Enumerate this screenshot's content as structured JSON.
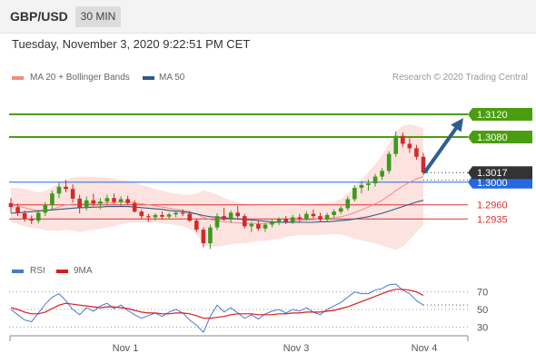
{
  "header": {
    "symbol": "GBP/USD",
    "timeframe": "30 MIN"
  },
  "date_line": "Tuesday, November 3, 2020 9:22:51 PM CET",
  "copyright": "Research © 2020 Trading Central",
  "legend": {
    "ma20_label": "MA 20 + Bollinger Bands",
    "ma20_color": "#f28b82",
    "ma50_label": "MA 50",
    "ma50_color": "#2d5a85",
    "rsi_label": "RSI",
    "rsi_color": "#4a78d0",
    "rsi_ma_label": "9MA",
    "rsi_ma_color": "#d81b1b"
  },
  "chart_data": [
    {
      "type": "candlestick",
      "ylim": [
        1.286,
        1.3165
      ],
      "x_labels": [
        "Nov 1",
        "Nov 3",
        "Nov 4"
      ],
      "candles": [
        [
          1.2963,
          1.2972,
          1.2946,
          1.2956
        ],
        [
          1.2956,
          1.2962,
          1.294,
          1.2945
        ],
        [
          1.2945,
          1.295,
          1.293,
          1.2935
        ],
        [
          1.2935,
          1.2941,
          1.2926,
          1.2932
        ],
        [
          1.2932,
          1.2949,
          1.2927,
          1.2946
        ],
        [
          1.2946,
          1.2965,
          1.294,
          1.296
        ],
        [
          1.296,
          1.2985,
          1.2952,
          1.298
        ],
        [
          1.298,
          1.3,
          1.2972,
          1.2992
        ],
        [
          1.2992,
          1.3004,
          1.2982,
          1.2988
        ],
        [
          1.2988,
          1.2996,
          1.2964,
          1.2971
        ],
        [
          1.2971,
          1.2978,
          1.2945,
          1.2955
        ],
        [
          1.2955,
          1.2975,
          1.295,
          1.2968
        ],
        [
          1.2968,
          1.298,
          1.2958,
          1.2962
        ],
        [
          1.2962,
          1.2972,
          1.2952,
          1.2966
        ],
        [
          1.2966,
          1.2978,
          1.296,
          1.2972
        ],
        [
          1.2972,
          1.298,
          1.2962,
          1.2965
        ],
        [
          1.2965,
          1.2975,
          1.2958,
          1.297
        ],
        [
          1.297,
          1.2976,
          1.296,
          1.2963
        ],
        [
          1.2963,
          1.2968,
          1.2946,
          1.2948
        ],
        [
          1.2948,
          1.2952,
          1.2935,
          1.294
        ],
        [
          1.294,
          1.2944,
          1.293,
          1.2938
        ],
        [
          1.2938,
          1.2945,
          1.2932,
          1.2942
        ],
        [
          1.2942,
          1.2948,
          1.2934,
          1.2939
        ],
        [
          1.2939,
          1.2946,
          1.2935,
          1.2943
        ],
        [
          1.2943,
          1.295,
          1.2938,
          1.2946
        ],
        [
          1.2946,
          1.2952,
          1.294,
          1.2944
        ],
        [
          1.2944,
          1.2949,
          1.293,
          1.2932
        ],
        [
          1.2932,
          1.2936,
          1.2912,
          1.2916
        ],
        [
          1.2916,
          1.292,
          1.2885,
          1.2892
        ],
        [
          1.2892,
          1.2925,
          1.2882,
          1.292
        ],
        [
          1.292,
          1.2945,
          1.2915,
          1.294
        ],
        [
          1.294,
          1.2955,
          1.2932,
          1.2934
        ],
        [
          1.2934,
          1.295,
          1.2928,
          1.2946
        ],
        [
          1.2946,
          1.2958,
          1.2936,
          1.294
        ],
        [
          1.294,
          1.2944,
          1.2918,
          1.2922
        ],
        [
          1.2922,
          1.293,
          1.2912,
          1.2926
        ],
        [
          1.2926,
          1.2932,
          1.2914,
          1.2918
        ],
        [
          1.2918,
          1.2928,
          1.2912,
          1.2925
        ],
        [
          1.2925,
          1.2934,
          1.292,
          1.293
        ],
        [
          1.293,
          1.2938,
          1.2924,
          1.2935
        ],
        [
          1.2935,
          1.294,
          1.2926,
          1.293
        ],
        [
          1.293,
          1.2942,
          1.2926,
          1.2938
        ],
        [
          1.2938,
          1.2944,
          1.293,
          1.2935
        ],
        [
          1.2935,
          1.2948,
          1.2932,
          1.2944
        ],
        [
          1.2944,
          1.2952,
          1.2936,
          1.294
        ],
        [
          1.294,
          1.2946,
          1.293,
          1.2934
        ],
        [
          1.2934,
          1.2946,
          1.293,
          1.2942
        ],
        [
          1.2942,
          1.2952,
          1.2938,
          1.2948
        ],
        [
          1.2948,
          1.2958,
          1.2944,
          1.2954
        ],
        [
          1.2954,
          1.2975,
          1.295,
          1.297
        ],
        [
          1.297,
          1.2995,
          1.2966,
          1.299
        ],
        [
          1.299,
          1.3002,
          1.298,
          1.2995
        ],
        [
          1.2995,
          1.3005,
          1.2985,
          1.2998
        ],
        [
          1.2998,
          1.3015,
          1.2992,
          1.301
        ],
        [
          1.301,
          1.3025,
          1.3004,
          1.302
        ],
        [
          1.302,
          1.3055,
          1.3015,
          1.305
        ],
        [
          1.305,
          1.309,
          1.3045,
          1.3082
        ],
        [
          1.3082,
          1.3088,
          1.3062,
          1.3068
        ],
        [
          1.3068,
          1.3078,
          1.3052,
          1.306
        ],
        [
          1.306,
          1.3066,
          1.304,
          1.3045
        ],
        [
          1.3045,
          1.3052,
          1.3012,
          1.3017
        ]
      ],
      "ma20": [
        1.296,
        1.2958,
        1.2955,
        1.2952,
        1.295,
        1.295,
        1.2952,
        1.2956,
        1.296,
        1.2961,
        1.2961,
        1.2962,
        1.2963,
        1.2963,
        1.2964,
        1.2964,
        1.2965,
        1.2965,
        1.2964,
        1.2962,
        1.296,
        1.2958,
        1.2956,
        1.2954,
        1.2952,
        1.295,
        1.2948,
        1.2944,
        1.2938,
        1.2934,
        1.2932,
        1.293,
        1.2929,
        1.2928,
        1.2927,
        1.2927,
        1.2927,
        1.2927,
        1.2928,
        1.2929,
        1.293,
        1.2931,
        1.2932,
        1.2933,
        1.2934,
        1.2935,
        1.2936,
        1.2937,
        1.2939,
        1.2942,
        1.2946,
        1.2951,
        1.2956,
        1.2962,
        1.2968,
        1.2976,
        1.2985,
        1.2993,
        1.3,
        1.3006,
        1.301
      ],
      "bb_upper": [
        1.299,
        1.299,
        1.2988,
        1.2985,
        1.2982,
        1.2985,
        1.299,
        1.2998,
        1.3004,
        1.3008,
        1.301,
        1.301,
        1.301,
        1.3009,
        1.3008,
        1.3006,
        1.3004,
        1.3002,
        1.3,
        1.2995,
        1.2992,
        1.2988,
        1.2985,
        1.2982,
        1.298,
        1.2978,
        1.2978,
        1.298,
        1.2985,
        1.2983,
        1.2978,
        1.2972,
        1.2968,
        1.2964,
        1.2962,
        1.296,
        1.2958,
        1.2958,
        1.2958,
        1.2958,
        1.2957,
        1.2957,
        1.2958,
        1.296,
        1.2962,
        1.2963,
        1.2964,
        1.2966,
        1.297,
        1.298,
        1.2992,
        1.3005,
        1.3018,
        1.3032,
        1.3048,
        1.3068,
        1.309,
        1.31,
        1.3102,
        1.31,
        1.3096
      ],
      "bb_lower": [
        1.293,
        1.2926,
        1.2922,
        1.2919,
        1.2918,
        1.2915,
        1.2914,
        1.2914,
        1.2916,
        1.2914,
        1.2912,
        1.2914,
        1.2916,
        1.2917,
        1.292,
        1.2922,
        1.2926,
        1.2928,
        1.2928,
        1.2929,
        1.2928,
        1.2928,
        1.2927,
        1.2926,
        1.2924,
        1.2922,
        1.2918,
        1.2908,
        1.2891,
        1.2885,
        1.2886,
        1.2888,
        1.289,
        1.2892,
        1.2892,
        1.2894,
        1.2896,
        1.2896,
        1.2898,
        1.29,
        1.2903,
        1.2905,
        1.2906,
        1.2906,
        1.2906,
        1.2907,
        1.2908,
        1.2908,
        1.2908,
        1.2904,
        1.29,
        1.2897,
        1.2894,
        1.2892,
        1.2888,
        1.2884,
        1.288,
        1.2886,
        1.2898,
        1.2912,
        1.2924
      ],
      "ma50": [
        1.2945,
        1.2946,
        1.2947,
        1.2948,
        1.2949,
        1.295,
        1.2951,
        1.2952,
        1.2953,
        1.2954,
        1.2955,
        1.2955,
        1.2956,
        1.2956,
        1.2957,
        1.2957,
        1.2957,
        1.2957,
        1.2956,
        1.2955,
        1.2954,
        1.2953,
        1.2952,
        1.295,
        1.2949,
        1.2948,
        1.2946,
        1.2944,
        1.2941,
        1.2939,
        1.2938,
        1.2937,
        1.2936,
        1.2935,
        1.2934,
        1.2933,
        1.2932,
        1.2931,
        1.293,
        1.2929,
        1.2929,
        1.2929,
        1.2929,
        1.2929,
        1.2929,
        1.293,
        1.293,
        1.2931,
        1.2932,
        1.2933,
        1.2935,
        1.2937,
        1.2939,
        1.2942,
        1.2945,
        1.2949,
        1.2953,
        1.2957,
        1.2961,
        1.2965,
        1.2968
      ],
      "levels": [
        {
          "value": 1.312,
          "label": "1.3120",
          "color": "#4a9e0e",
          "kind": "target"
        },
        {
          "value": 1.308,
          "label": "1.3080",
          "color": "#4a9e0e",
          "kind": "resistance"
        },
        {
          "value": 1.3,
          "label": "1.3000",
          "color": "#2369e0",
          "kind": "pivot"
        },
        {
          "value": 1.296,
          "label": "1.2960",
          "color": "#e03030",
          "kind": "support"
        },
        {
          "value": 1.2935,
          "label": "1.2935",
          "color": "#e03030",
          "kind": "support"
        }
      ],
      "last_price": {
        "value": 1.3017,
        "label": "1.3017",
        "color": "#333333"
      },
      "forecast_arrow": {
        "from": 1.3017,
        "to": 1.312,
        "color": "#2d5f8f"
      }
    },
    {
      "type": "line",
      "ylim": [
        20,
        80
      ],
      "y_ticks": [
        70,
        50,
        30
      ],
      "series": [
        {
          "name": "RSI",
          "values": [
            50,
            44,
            38,
            36,
            46,
            56,
            64,
            68,
            60,
            50,
            44,
            52,
            48,
            54,
            57,
            51,
            55,
            49,
            44,
            40,
            43,
            46,
            42,
            47,
            50,
            46,
            38,
            32,
            24,
            42,
            55,
            47,
            52,
            46,
            40,
            44,
            39,
            45,
            48,
            50,
            46,
            50,
            48,
            52,
            47,
            44,
            50,
            54,
            58,
            64,
            70,
            68,
            68,
            72,
            74,
            78,
            79,
            72,
            68,
            60,
            55
          ]
        },
        {
          "name": "9MA",
          "values": [
            52,
            50,
            47,
            45,
            45,
            47,
            51,
            55,
            57,
            56,
            55,
            54,
            53,
            52,
            53,
            53,
            52,
            51,
            49,
            47,
            46,
            46,
            45,
            45,
            46,
            46,
            45,
            43,
            40,
            40,
            41,
            42,
            44,
            45,
            45,
            45,
            44,
            44,
            44,
            45,
            45,
            46,
            46,
            47,
            47,
            47,
            48,
            49,
            51,
            53,
            56,
            59,
            62,
            65,
            68,
            71,
            73,
            73,
            72,
            70,
            66
          ]
        }
      ]
    }
  ]
}
